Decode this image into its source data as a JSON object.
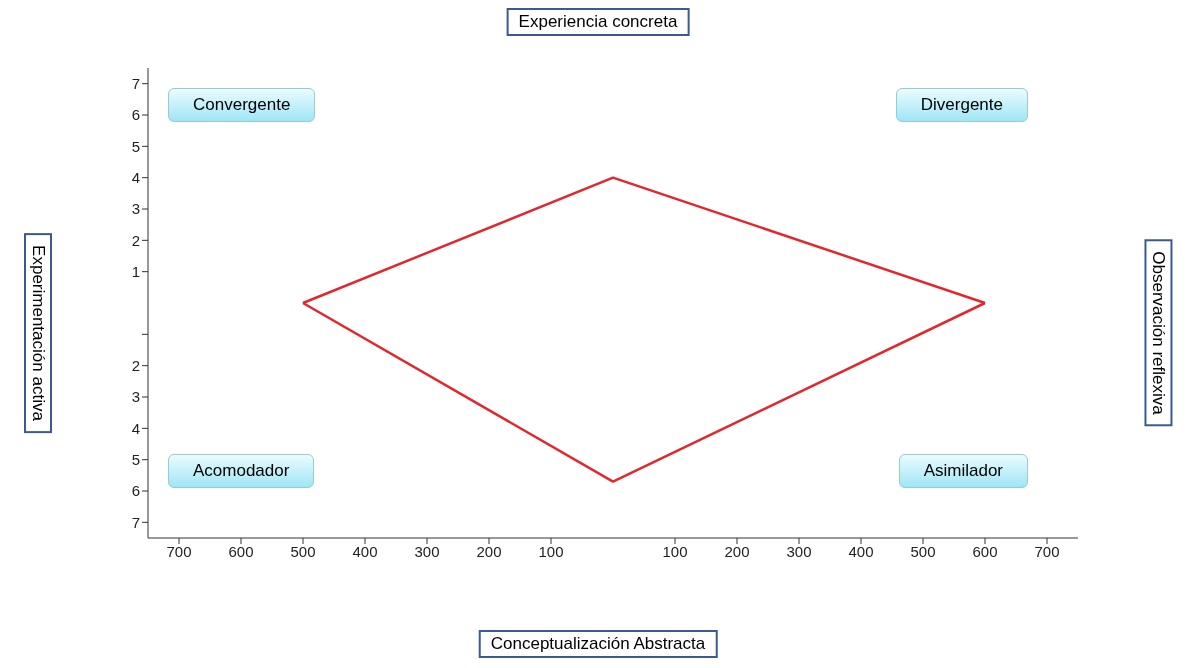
{
  "chart_data": {
    "type": "line",
    "series": [
      {
        "color": "#e0282e",
        "x": [
          -500,
          0,
          600
        ],
        "values": [
          0,
          4,
          0
        ]
      },
      {
        "color": "#e0282e",
        "x": [
          -500,
          0,
          600
        ],
        "values": [
          0,
          -5.7,
          0
        ]
      }
    ],
    "xlim": [
      -750,
      750
    ],
    "xticks": [
      {
        "value": -700,
        "label": "700"
      },
      {
        "value": -600,
        "label": "600"
      },
      {
        "value": -500,
        "label": "500"
      },
      {
        "value": -400,
        "label": "400"
      },
      {
        "value": -300,
        "label": "300"
      },
      {
        "value": -200,
        "label": "200"
      },
      {
        "value": -100,
        "label": "100"
      },
      100,
      200,
      300,
      400,
      500,
      600,
      700
    ],
    "ylim": [
      -7.5,
      7.5
    ],
    "yticks": [
      {
        "value": -7,
        "label": "7"
      },
      {
        "value": -6,
        "label": "6"
      },
      {
        "value": -5,
        "label": "5"
      },
      {
        "value": -4,
        "label": "4"
      },
      {
        "value": -3,
        "label": "3"
      },
      {
        "value": -2,
        "label": "2"
      },
      {
        "value": -1,
        "label": null
      },
      1,
      2,
      3,
      4,
      5,
      6,
      7
    ],
    "annotations": [
      "Experiencia concreta",
      "Conceptualización Abstracta",
      "Experimentación activa",
      "Observación reflexiva",
      "Convergente",
      "Divergente",
      "Acomodador",
      "Asimilador"
    ],
    "grid": false,
    "marker": "none",
    "line_style": "solid"
  }
}
